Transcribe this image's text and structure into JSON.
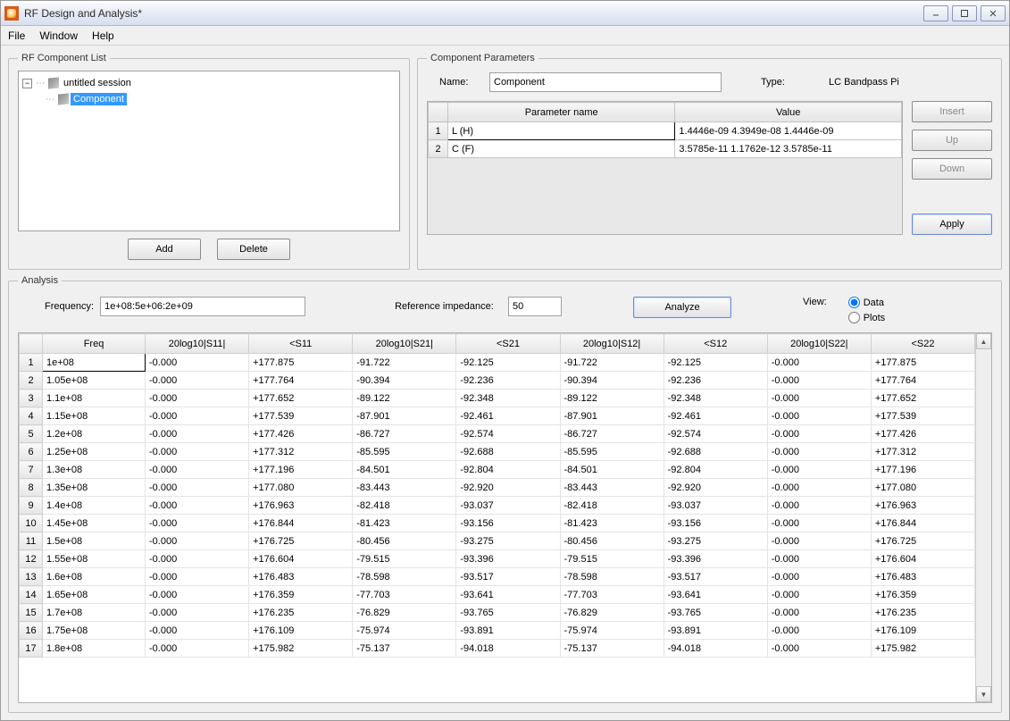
{
  "window": {
    "title": "RF Design and Analysis*"
  },
  "menu": {
    "file": "File",
    "window": "Window",
    "help": "Help"
  },
  "rfcomp": {
    "legend": "RF Component List",
    "root": "untitled session",
    "child": "Component",
    "add": "Add",
    "delete": "Delete"
  },
  "params": {
    "legend": "Component Parameters",
    "nameLabel": "Name:",
    "nameValue": "Component",
    "typeLabel": "Type:",
    "typeValue": "LC Bandpass Pi",
    "col1": "Parameter name",
    "col2": "Value",
    "rows": [
      {
        "n": "1",
        "name": "L (H)",
        "value": "1.4446e-09 4.3949e-08 1.4446e-09"
      },
      {
        "n": "2",
        "name": "C (F)",
        "value": "3.5785e-11 1.1762e-12 3.5785e-11"
      }
    ],
    "insert": "Insert",
    "up": "Up",
    "down": "Down",
    "apply": "Apply"
  },
  "analysis": {
    "legend": "Analysis",
    "freqLabel": "Frequency:",
    "freqValue": "1e+08:5e+06:2e+09",
    "refLabel": "Reference impedance:",
    "refValue": "50",
    "analyze": "Analyze",
    "viewLabel": "View:",
    "viewData": "Data",
    "viewPlots": "Plots",
    "headers": [
      "",
      "Freq",
      "20log10|S11|",
      "<S11",
      "20log10|S21|",
      "<S21",
      "20log10|S12|",
      "<S12",
      "20log10|S22|",
      "<S22"
    ],
    "rows": [
      [
        "1",
        "1e+08",
        "-0.000",
        "+177.875",
        "-91.722",
        "-92.125",
        "-91.722",
        "-92.125",
        "-0.000",
        "+177.875"
      ],
      [
        "2",
        "1.05e+08",
        "-0.000",
        "+177.764",
        "-90.394",
        "-92.236",
        "-90.394",
        "-92.236",
        "-0.000",
        "+177.764"
      ],
      [
        "3",
        "1.1e+08",
        "-0.000",
        "+177.652",
        "-89.122",
        "-92.348",
        "-89.122",
        "-92.348",
        "-0.000",
        "+177.652"
      ],
      [
        "4",
        "1.15e+08",
        "-0.000",
        "+177.539",
        "-87.901",
        "-92.461",
        "-87.901",
        "-92.461",
        "-0.000",
        "+177.539"
      ],
      [
        "5",
        "1.2e+08",
        "-0.000",
        "+177.426",
        "-86.727",
        "-92.574",
        "-86.727",
        "-92.574",
        "-0.000",
        "+177.426"
      ],
      [
        "6",
        "1.25e+08",
        "-0.000",
        "+177.312",
        "-85.595",
        "-92.688",
        "-85.595",
        "-92.688",
        "-0.000",
        "+177.312"
      ],
      [
        "7",
        "1.3e+08",
        "-0.000",
        "+177.196",
        "-84.501",
        "-92.804",
        "-84.501",
        "-92.804",
        "-0.000",
        "+177.196"
      ],
      [
        "8",
        "1.35e+08",
        "-0.000",
        "+177.080",
        "-83.443",
        "-92.920",
        "-83.443",
        "-92.920",
        "-0.000",
        "+177.080"
      ],
      [
        "9",
        "1.4e+08",
        "-0.000",
        "+176.963",
        "-82.418",
        "-93.037",
        "-82.418",
        "-93.037",
        "-0.000",
        "+176.963"
      ],
      [
        "10",
        "1.45e+08",
        "-0.000",
        "+176.844",
        "-81.423",
        "-93.156",
        "-81.423",
        "-93.156",
        "-0.000",
        "+176.844"
      ],
      [
        "11",
        "1.5e+08",
        "-0.000",
        "+176.725",
        "-80.456",
        "-93.275",
        "-80.456",
        "-93.275",
        "-0.000",
        "+176.725"
      ],
      [
        "12",
        "1.55e+08",
        "-0.000",
        "+176.604",
        "-79.515",
        "-93.396",
        "-79.515",
        "-93.396",
        "-0.000",
        "+176.604"
      ],
      [
        "13",
        "1.6e+08",
        "-0.000",
        "+176.483",
        "-78.598",
        "-93.517",
        "-78.598",
        "-93.517",
        "-0.000",
        "+176.483"
      ],
      [
        "14",
        "1.65e+08",
        "-0.000",
        "+176.359",
        "-77.703",
        "-93.641",
        "-77.703",
        "-93.641",
        "-0.000",
        "+176.359"
      ],
      [
        "15",
        "1.7e+08",
        "-0.000",
        "+176.235",
        "-76.829",
        "-93.765",
        "-76.829",
        "-93.765",
        "-0.000",
        "+176.235"
      ],
      [
        "16",
        "1.75e+08",
        "-0.000",
        "+176.109",
        "-75.974",
        "-93.891",
        "-75.974",
        "-93.891",
        "-0.000",
        "+176.109"
      ],
      [
        "17",
        "1.8e+08",
        "-0.000",
        "+175.982",
        "-75.137",
        "-94.018",
        "-75.137",
        "-94.018",
        "-0.000",
        "+175.982"
      ]
    ]
  }
}
